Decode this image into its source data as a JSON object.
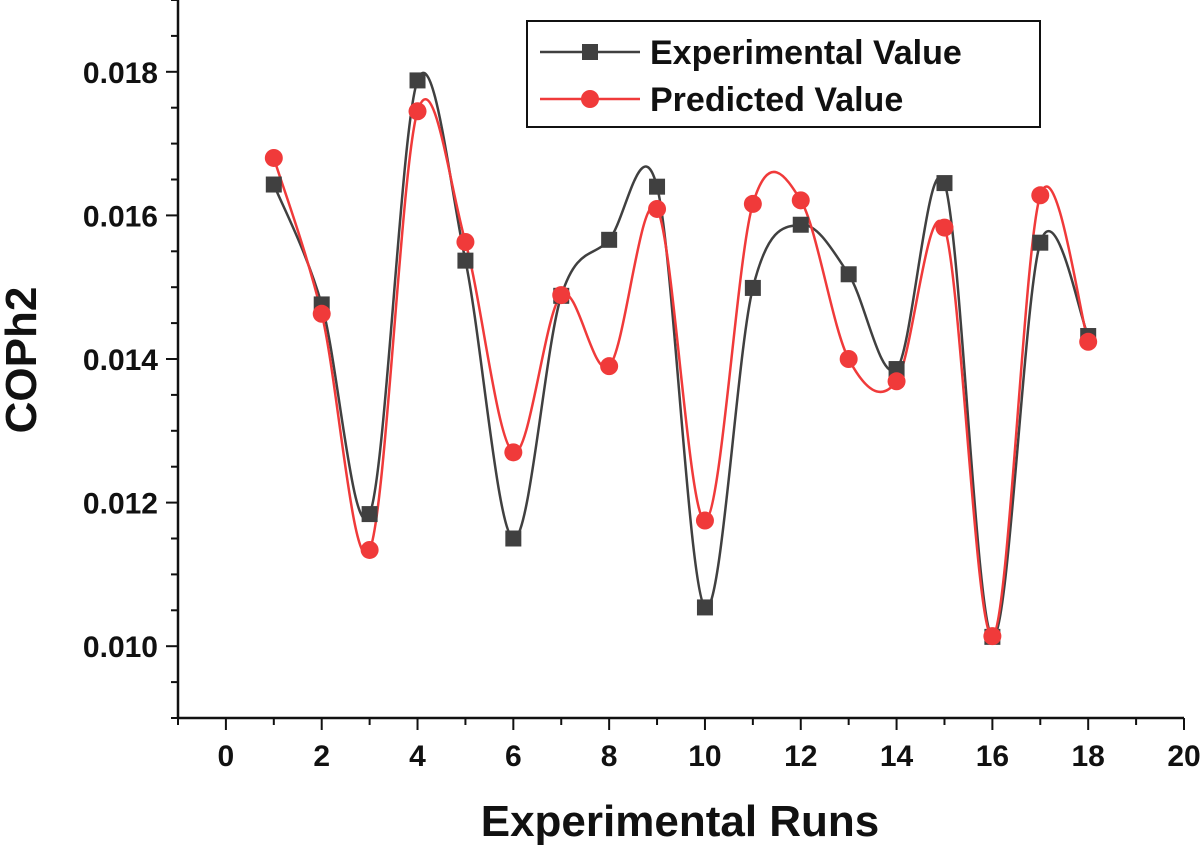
{
  "chart_data": {
    "type": "line",
    "title": "",
    "xlabel": "Experimental Runs",
    "ylabel": "COPh2",
    "xlim": [
      -1,
      20
    ],
    "ylim": [
      0.009,
      0.019
    ],
    "x_ticks": [
      0,
      2,
      4,
      6,
      8,
      10,
      12,
      14,
      16,
      18,
      20
    ],
    "x_tick_labels": [
      "0",
      "2",
      "4",
      "6",
      "8",
      "10",
      "12",
      "14",
      "16",
      "18",
      "20"
    ],
    "y_ticks": [
      0.01,
      0.012,
      0.014,
      0.016,
      0.018
    ],
    "y_tick_labels": [
      "0.010",
      "0.012",
      "0.014",
      "0.016",
      "0.018"
    ],
    "legend_position": "top-right",
    "x": [
      1,
      2,
      3,
      4,
      5,
      6,
      7,
      8,
      9,
      10,
      11,
      12,
      13,
      14,
      15,
      16,
      17,
      18
    ],
    "series": [
      {
        "name": "Experimental Value",
        "color": "#404040",
        "marker": "square",
        "values": [
          0.01643,
          0.01476,
          0.01184,
          0.01788,
          0.01537,
          0.0115,
          0.01488,
          0.01566,
          0.0164,
          0.01054,
          0.01499,
          0.01587,
          0.01518,
          0.01386,
          0.01645,
          0.01013,
          0.01562,
          0.01432
        ]
      },
      {
        "name": "Predicted Value",
        "color": "#f03a3a",
        "marker": "circle",
        "values": [
          0.0168,
          0.01463,
          0.01134,
          0.01745,
          0.01563,
          0.0127,
          0.01489,
          0.0139,
          0.01609,
          0.01175,
          0.01616,
          0.01621,
          0.014,
          0.01369,
          0.01583,
          0.01014,
          0.01628,
          0.01424
        ]
      }
    ]
  }
}
